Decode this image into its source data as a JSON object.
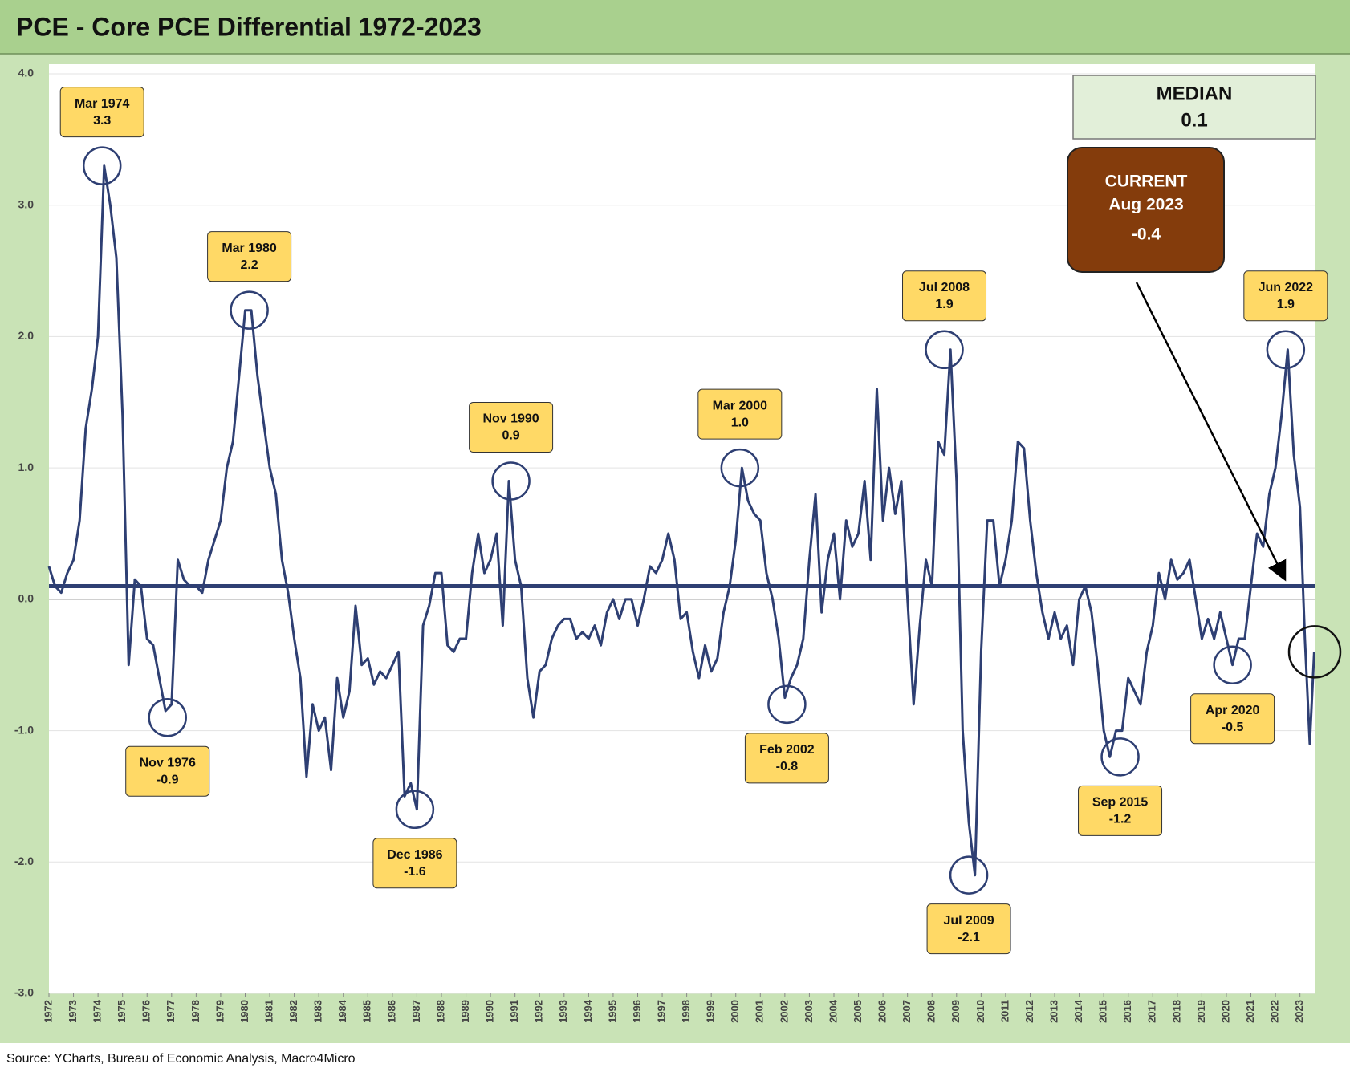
{
  "chart_data": {
    "type": "line",
    "title": "PCE - Core PCE Differential 1972-2023",
    "source": "Source: YCharts, Bureau of Economic Analysis, Macro4Micro",
    "color": "#2e3f73",
    "xlim": [
      1972,
      2023.6
    ],
    "xticks": [
      1972,
      1973,
      1974,
      1975,
      1976,
      1977,
      1978,
      1979,
      1980,
      1981,
      1982,
      1983,
      1984,
      1985,
      1986,
      1987,
      1988,
      1989,
      1990,
      1991,
      1992,
      1993,
      1994,
      1995,
      1996,
      1997,
      1998,
      1999,
      2000,
      2001,
      2002,
      2003,
      2004,
      2005,
      2006,
      2007,
      2008,
      2009,
      2010,
      2011,
      2012,
      2013,
      2014,
      2015,
      2016,
      2017,
      2018,
      2019,
      2020,
      2021,
      2022,
      2023
    ],
    "ylim": [
      -3,
      4
    ],
    "yticks": [
      {
        "value": 4,
        "label": "4.0"
      },
      {
        "value": 3,
        "label": "3.0"
      },
      {
        "value": 2,
        "label": "2.0"
      },
      {
        "value": 1,
        "label": "1.0"
      },
      {
        "value": 0,
        "label": "0.0"
      },
      {
        "value": -1,
        "label": "-1.0"
      },
      {
        "value": -2,
        "label": "-2.0"
      },
      {
        "value": -3,
        "label": "-3.0"
      }
    ],
    "grid": true,
    "x": [
      1972,
      1972.25,
      1972.5,
      1972.75,
      1973,
      1973.25,
      1973.5,
      1973.75,
      1974,
      1974.25,
      1974.5,
      1974.75,
      1975,
      1975.25,
      1975.5,
      1975.75,
      1976,
      1976.25,
      1976.5,
      1976.75,
      1977,
      1977.25,
      1977.5,
      1977.75,
      1978,
      1978.25,
      1978.5,
      1978.75,
      1979,
      1979.25,
      1979.5,
      1979.75,
      1980,
      1980.25,
      1980.5,
      1980.75,
      1981,
      1981.25,
      1981.5,
      1981.75,
      1982,
      1982.25,
      1982.5,
      1982.75,
      1983,
      1983.25,
      1983.5,
      1983.75,
      1984,
      1984.25,
      1984.5,
      1984.75,
      1985,
      1985.25,
      1985.5,
      1985.75,
      1986,
      1986.25,
      1986.5,
      1986.75,
      1987,
      1987.25,
      1987.5,
      1987.75,
      1988,
      1988.25,
      1988.5,
      1988.75,
      1989,
      1989.25,
      1989.5,
      1989.75,
      1990,
      1990.25,
      1990.5,
      1990.75,
      1991,
      1991.25,
      1991.5,
      1991.75,
      1992,
      1992.25,
      1992.5,
      1992.75,
      1993,
      1993.25,
      1993.5,
      1993.75,
      1994,
      1994.25,
      1994.5,
      1994.75,
      1995,
      1995.25,
      1995.5,
      1995.75,
      1996,
      1996.25,
      1996.5,
      1996.75,
      1997,
      1997.25,
      1997.5,
      1997.75,
      1998,
      1998.25,
      1998.5,
      1998.75,
      1999,
      1999.25,
      1999.5,
      1999.75,
      2000,
      2000.25,
      2000.5,
      2000.75,
      2001,
      2001.25,
      2001.5,
      2001.75,
      2002,
      2002.25,
      2002.5,
      2002.75,
      2003,
      2003.25,
      2003.5,
      2003.75,
      2004,
      2004.25,
      2004.5,
      2004.75,
      2005,
      2005.25,
      2005.5,
      2005.75,
      2006,
      2006.25,
      2006.5,
      2006.75,
      2007,
      2007.25,
      2007.5,
      2007.75,
      2008,
      2008.25,
      2008.5,
      2008.75,
      2009,
      2009.25,
      2009.5,
      2009.75,
      2010,
      2010.25,
      2010.5,
      2010.75,
      2011,
      2011.25,
      2011.5,
      2011.75,
      2012,
      2012.25,
      2012.5,
      2012.75,
      2013,
      2013.25,
      2013.5,
      2013.75,
      2014,
      2014.25,
      2014.5,
      2014.75,
      2015,
      2015.25,
      2015.5,
      2015.75,
      2016,
      2016.25,
      2016.5,
      2016.75,
      2017,
      2017.25,
      2017.5,
      2017.75,
      2018,
      2018.25,
      2018.5,
      2018.75,
      2019,
      2019.25,
      2019.5,
      2019.75,
      2020,
      2020.25,
      2020.5,
      2020.75,
      2021,
      2021.25,
      2021.5,
      2021.75,
      2022,
      2022.25,
      2022.5,
      2022.75,
      2023,
      2023.2,
      2023.4,
      2023.58
    ],
    "values": [
      0.25,
      0.1,
      0.05,
      0.2,
      0.3,
      0.6,
      1.3,
      1.6,
      2.0,
      3.3,
      3.0,
      2.6,
      1.4,
      -0.5,
      0.15,
      0.1,
      -0.3,
      -0.35,
      -0.6,
      -0.85,
      -0.8,
      0.3,
      0.15,
      0.1,
      0.1,
      0.05,
      0.3,
      0.45,
      0.6,
      1.0,
      1.2,
      1.7,
      2.2,
      2.2,
      1.7,
      1.35,
      1.0,
      0.8,
      0.3,
      0.05,
      -0.3,
      -0.6,
      -1.35,
      -0.8,
      -1.0,
      -0.9,
      -1.3,
      -0.6,
      -0.9,
      -0.7,
      -0.05,
      -0.5,
      -0.45,
      -0.65,
      -0.55,
      -0.6,
      -0.5,
      -0.4,
      -1.5,
      -1.4,
      -1.6,
      -0.2,
      -0.05,
      0.2,
      0.2,
      -0.35,
      -0.4,
      -0.3,
      -0.3,
      0.2,
      0.5,
      0.2,
      0.3,
      0.5,
      -0.2,
      0.9,
      0.3,
      0.1,
      -0.6,
      -0.9,
      -0.55,
      -0.5,
      -0.3,
      -0.2,
      -0.15,
      -0.15,
      -0.3,
      -0.25,
      -0.3,
      -0.2,
      -0.35,
      -0.1,
      0.0,
      -0.15,
      0.0,
      0.0,
      -0.2,
      0.0,
      0.25,
      0.2,
      0.3,
      0.5,
      0.3,
      -0.15,
      -0.1,
      -0.4,
      -0.6,
      -0.35,
      -0.55,
      -0.45,
      -0.1,
      0.1,
      0.45,
      1.0,
      0.75,
      0.65,
      0.6,
      0.2,
      0.0,
      -0.3,
      -0.75,
      -0.6,
      -0.5,
      -0.3,
      0.3,
      0.8,
      -0.1,
      0.3,
      0.5,
      0.0,
      0.6,
      0.4,
      0.5,
      0.9,
      0.3,
      1.6,
      0.6,
      1.0,
      0.65,
      0.9,
      0.0,
      -0.8,
      -0.2,
      0.3,
      0.1,
      1.2,
      1.1,
      1.9,
      0.9,
      -1.0,
      -1.7,
      -2.1,
      -0.4,
      0.6,
      0.6,
      0.1,
      0.3,
      0.6,
      1.2,
      1.15,
      0.6,
      0.2,
      -0.1,
      -0.3,
      -0.1,
      -0.3,
      -0.2,
      -0.5,
      0.0,
      0.1,
      -0.1,
      -0.5,
      -1.0,
      -1.2,
      -1.0,
      -1.0,
      -0.6,
      -0.7,
      -0.8,
      -0.4,
      -0.2,
      0.2,
      0.0,
      0.3,
      0.15,
      0.2,
      0.3,
      0.0,
      -0.3,
      -0.15,
      -0.3,
      -0.1,
      -0.3,
      -0.5,
      -0.3,
      -0.3,
      0.1,
      0.5,
      0.4,
      0.8,
      1.0,
      1.4,
      1.9,
      1.1,
      0.7,
      -0.3,
      -1.1,
      -0.4
    ],
    "median": {
      "label": "MEDIAN",
      "value": 0.1
    },
    "current": {
      "label": "CURRENT",
      "date": "Aug 2023",
      "value": -0.4
    },
    "annotations": [
      {
        "date": "Mar 1974",
        "value": 3.3
      },
      {
        "date": "Nov 1976",
        "value": -0.9
      },
      {
        "date": "Mar 1980",
        "value": 2.2
      },
      {
        "date": "Dec 1986",
        "value": -1.6
      },
      {
        "date": "Nov 1990",
        "value": 0.9
      },
      {
        "date": "Mar 2000",
        "value": 1,
        "value_label": "1.0"
      },
      {
        "date": "Feb 2002",
        "value": -0.8
      },
      {
        "date": "Jul 2008",
        "value": 1.9
      },
      {
        "date": "Jul 2009",
        "value": -2.1
      },
      {
        "date": "Sep 2015",
        "value": -1.2
      },
      {
        "date": "Apr 2020",
        "value": -0.5
      },
      {
        "date": "Jun 2022",
        "value": 1.9
      }
    ]
  }
}
